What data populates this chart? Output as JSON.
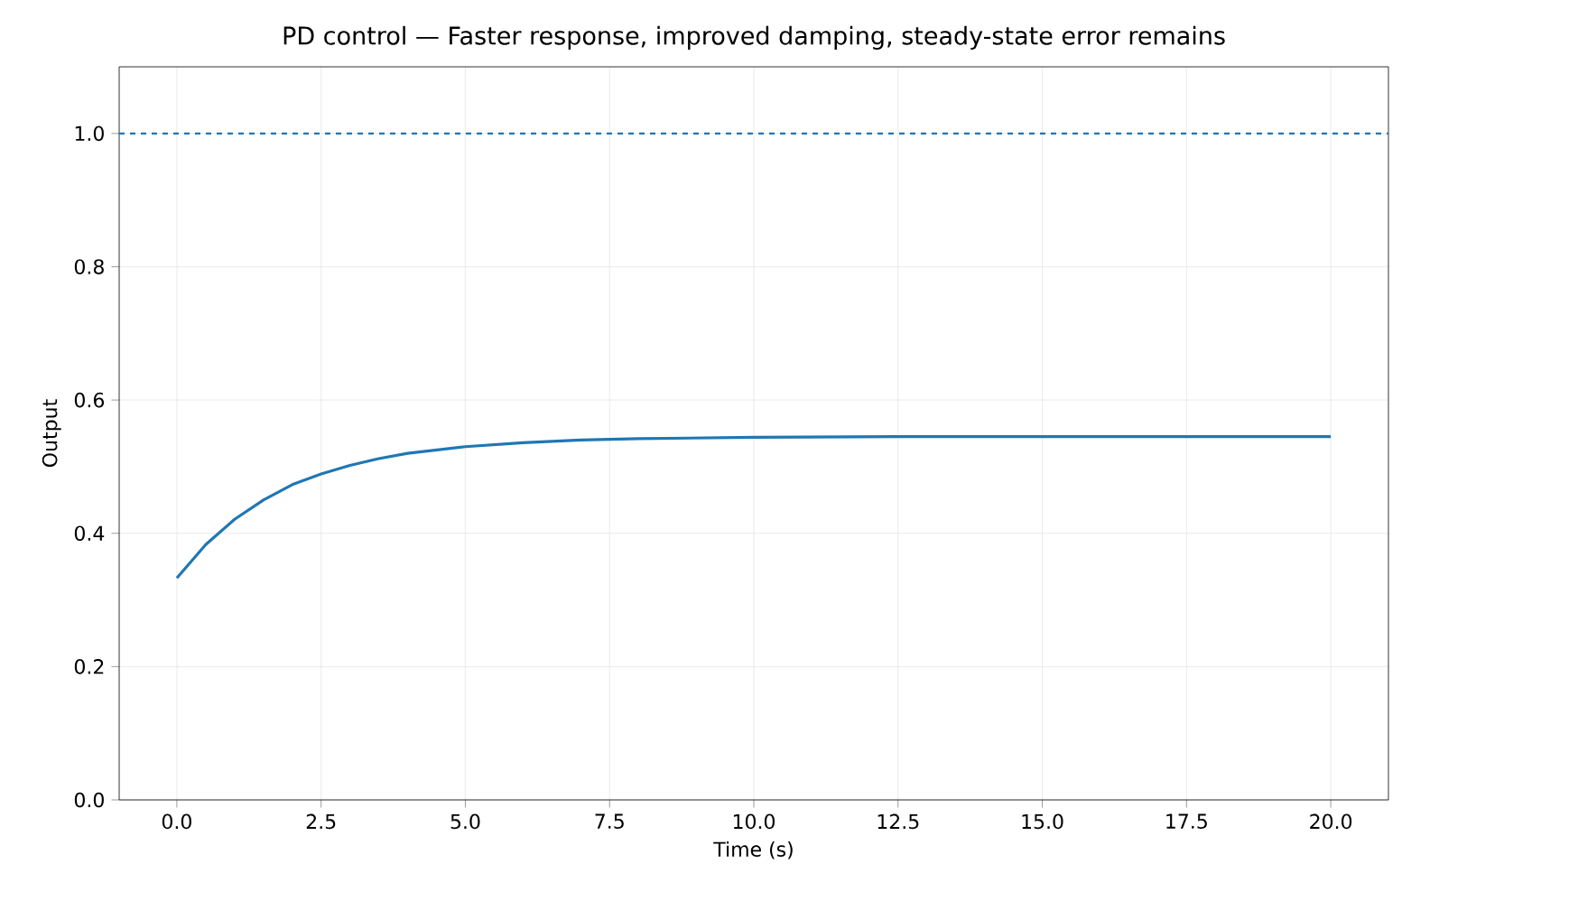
{
  "chart_data": {
    "type": "line",
    "title": "PD control — Faster response, improved damping, steady-state error remains",
    "xlabel": "Time (s)",
    "ylabel": "Output",
    "x": [
      0,
      0.5,
      1,
      1.5,
      2,
      2.5,
      3,
      3.5,
      4,
      5,
      6,
      7,
      8,
      10,
      12.5,
      15,
      20
    ],
    "series": [
      {
        "color": "#1f77b4",
        "values": [
          0.333,
          0.383,
          0.421,
          0.45,
          0.473,
          0.489,
          0.502,
          0.512,
          0.52,
          0.53,
          0.536,
          0.54,
          0.542,
          0.544,
          0.545,
          0.545,
          0.545
        ]
      }
    ],
    "xlim": [
      -1,
      21
    ],
    "ylim": [
      0,
      1.1
    ],
    "xticks": [
      {
        "value": 0,
        "label": "0.0"
      },
      2.5,
      {
        "value": 5,
        "label": "5.0"
      },
      7.5,
      {
        "value": 10,
        "label": "10.0"
      },
      12.5,
      {
        "value": 15,
        "label": "15.0"
      },
      17.5,
      {
        "value": 20,
        "label": "20.0"
      }
    ],
    "yticks": [
      {
        "value": 0,
        "label": "0.0"
      },
      0.2,
      0.4,
      0.6,
      0.8,
      {
        "value": 1,
        "label": "1.0"
      }
    ],
    "ref_lines": [
      {
        "axis": "y",
        "value": 1,
        "color": "#1f77b4",
        "line_style": "dashed"
      }
    ],
    "grid": true,
    "line_style": "solid"
  }
}
